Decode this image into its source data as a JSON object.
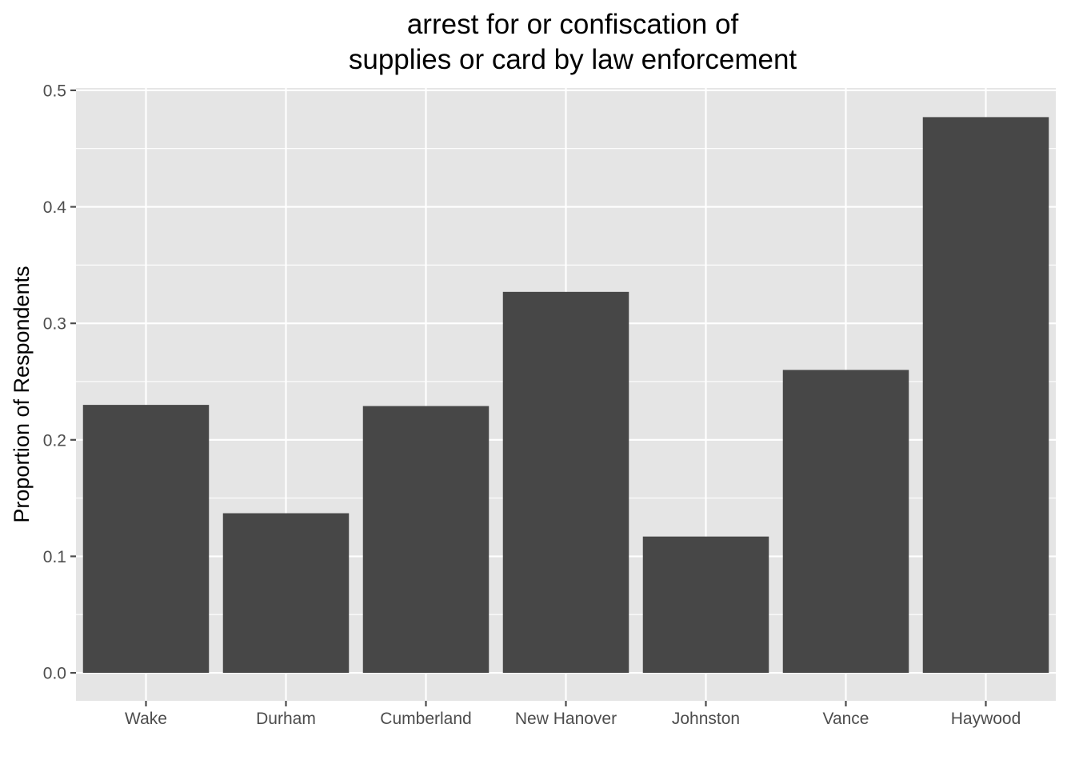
{
  "chart_data": {
    "type": "bar",
    "title_lines": [
      "arrest for or confiscation of",
      "supplies or card by law enforcement"
    ],
    "xlabel": "",
    "ylabel": "Proportion of Respondents",
    "categories": [
      "Wake",
      "Durham",
      "Cumberland",
      "New Hanover",
      "Johnston",
      "Vance",
      "Haywood"
    ],
    "values": [
      0.23,
      0.137,
      0.229,
      0.327,
      0.117,
      0.26,
      0.477
    ],
    "ylim": [
      -0.024,
      0.502
    ],
    "yticks": [
      0.0,
      0.1,
      0.2,
      0.3,
      0.4,
      0.5
    ],
    "ytick_labels": [
      "0.0",
      "0.1",
      "0.2",
      "0.3",
      "0.4",
      "0.5"
    ],
    "grid": true,
    "legend": "none",
    "colors": {
      "bar": "#474747",
      "panel": "#e5e5e5",
      "grid": "#ffffff",
      "tick": "#4d4d4d"
    }
  }
}
